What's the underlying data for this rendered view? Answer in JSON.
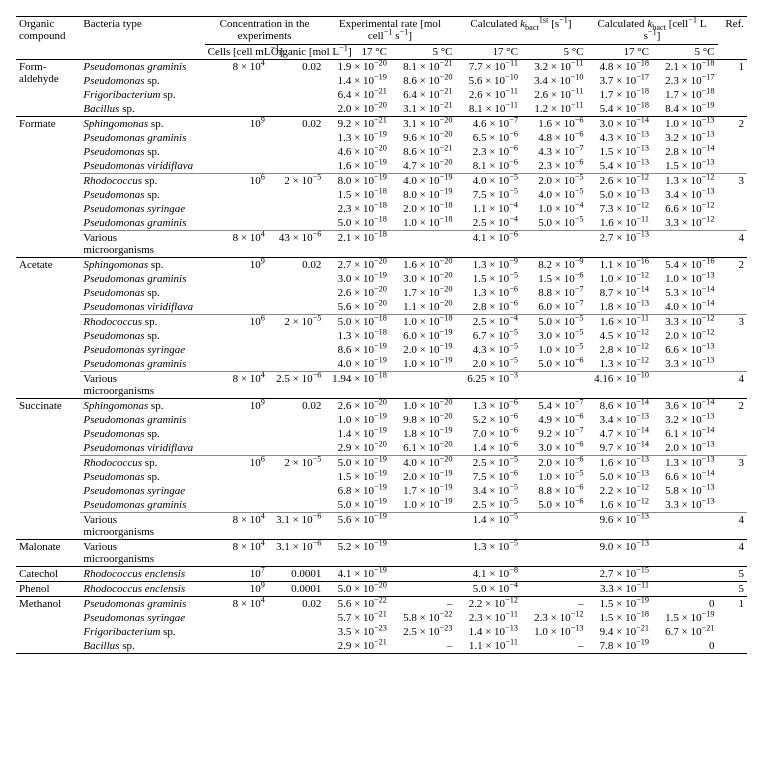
{
  "headers": {
    "organic": "Organic compound",
    "bacteria": "Bacteria type",
    "conc": "Concentration in the experiments",
    "exp_rate": "Experimental rate [mol cell<sup>−1</sup> s<sup>−1</sup>]",
    "k1st": "Calculated <i>k</i><sub>bact</sub><sup>1st</sup> [s<sup>−1</sup>]",
    "kbact": "Calculated <i>k</i><sub>bact</sub> [cell<sup>−1</sup> L s<sup>−1</sup>]",
    "ref": "Ref.",
    "cells": "Cells [cell mL<sup>−1</sup>]",
    "organic_c": "Organic [mol L<sup>−1</sup>]",
    "t17": "17 °C",
    "t5": "5 °C"
  },
  "groups": [
    {
      "compound": "Form-aldehyde",
      "blocks": [
        {
          "cells": "8 × 10<sup>4</sup>",
          "org": "0.02",
          "ref": "1",
          "rows": [
            {
              "b": "<i>Pseudomonas graminis</i>",
              "r17": "1.9 × 10<sup>−20</sup>",
              "r5": "8.1 × 10<sup>−21</sup>",
              "k17": "7.7 × 10<sup>−11</sup>",
              "k5": "3.2 × 10<sup>−11</sup>",
              "kb17": "4.8 × 10<sup>−18</sup>",
              "kb5": "2.1 × 10<sup>−18</sup>"
            },
            {
              "b": "<i>Pseudomonas</i> sp.",
              "r17": "1.4 × 10<sup>−19</sup>",
              "r5": "8.6 × 10<sup>−20</sup>",
              "k17": "5.6 × 10<sup>−10</sup>",
              "k5": "3.4 × 10<sup>−10</sup>",
              "kb17": "3.7 × 10<sup>−17</sup>",
              "kb5": "2.3 × 10<sup>−17</sup>"
            },
            {
              "b": "<i>Frigoribacterium</i> sp.",
              "r17": "6.4 × 10<sup>−21</sup>",
              "r5": "6.4 × 10<sup>−21</sup>",
              "k17": "2.6 × 10<sup>−11</sup>",
              "k5": "2.6 × 10<sup>−11</sup>",
              "kb17": "1.7 × 10<sup>−18</sup>",
              "kb5": "1.7 × 10<sup>−18</sup>"
            },
            {
              "b": "<i>Bacillus</i> sp.",
              "r17": "2.0 × 10<sup>−20</sup>",
              "r5": "3.1 × 10<sup>−21</sup>",
              "k17": "8.1 × 10<sup>−11</sup>",
              "k5": "1.2 × 10<sup>−11</sup>",
              "kb17": "5.4 × 10<sup>−18</sup>",
              "kb5": "8.4 × 10<sup>−19</sup>"
            }
          ]
        }
      ]
    },
    {
      "compound": "Formate",
      "blocks": [
        {
          "cells": "10<sup>9</sup>",
          "org": "0.02",
          "ref": "2",
          "rows": [
            {
              "b": "<i>Sphingomonas</i> sp.",
              "r17": "9.2 × 10<sup>−21</sup>",
              "r5": "3.1 × 10<sup>−20</sup>",
              "k17": "4.6 × 10<sup>−7</sup>",
              "k5": "1.6 × 10<sup>−6</sup>",
              "kb17": "3.0 × 10<sup>−14</sup>",
              "kb5": "1.0 × 10<sup>−13</sup>"
            },
            {
              "b": "<i>Pseudomonas graminis</i>",
              "r17": "1.3 × 10<sup>−19</sup>",
              "r5": "9.6 × 10<sup>−20</sup>",
              "k17": "6.5 × 10<sup>−6</sup>",
              "k5": "4.8 × 10<sup>−6</sup>",
              "kb17": "4.3 × 10<sup>−13</sup>",
              "kb5": "3.2 × 10<sup>−13</sup>"
            },
            {
              "b": "<i>Pseudomonas</i> sp.",
              "r17": "4.6 × 10<sup>−20</sup>",
              "r5": "8.6 × 10<sup>−21</sup>",
              "k17": "2.3 × 10<sup>−6</sup>",
              "k5": "4.3 × 10<sup>−7</sup>",
              "kb17": "1.5 × 10<sup>−13</sup>",
              "kb5": "2.8 × 10<sup>−14</sup>"
            },
            {
              "b": "<i>Pseudomonas viridiflava</i>",
              "r17": "1.6 × 10<sup>−19</sup>",
              "r5": "4.7 × 10<sup>−20</sup>",
              "k17": "8.1 × 10<sup>−6</sup>",
              "k5": "2.3 × 10<sup>−6</sup>",
              "kb17": "5.4 × 10<sup>−13</sup>",
              "kb5": "1.5 × 10<sup>−13</sup>"
            }
          ]
        },
        {
          "cells": "10<sup>6</sup>",
          "org": "2 × 10<sup>−5</sup>",
          "ref": "3",
          "rows": [
            {
              "b": "<i>Rhodococcus</i> sp.",
              "r17": "8.0 × 10<sup>−19</sup>",
              "r5": "4.0 × 10<sup>−19</sup>",
              "k17": "4.0 × 10<sup>−5</sup>",
              "k5": "2.0 × 10<sup>−5</sup>",
              "kb17": "2.6 × 10<sup>−12</sup>",
              "kb5": "1.3 × 10<sup>−12</sup>"
            },
            {
              "b": "<i>Pseudomonas</i> sp.",
              "r17": "1.5 × 10<sup>−18</sup>",
              "r5": "8.0 × 10<sup>−19</sup>",
              "k17": "7.5 × 10<sup>−5</sup>",
              "k5": "4.0 × 10<sup>−5</sup>",
              "kb17": "5.0 × 10<sup>−13</sup>",
              "kb5": "3.4 × 10<sup>−13</sup>"
            },
            {
              "b": "<i>Pseudomonas syringae</i>",
              "r17": "2.3 × 10<sup>−18</sup>",
              "r5": "2.0 × 10<sup>−18</sup>",
              "k17": "1.1 × 10<sup>−4</sup>",
              "k5": "1.0 × 10<sup>−4</sup>",
              "kb17": "7.3 × 10<sup>−12</sup>",
              "kb5": "6.6 × 10<sup>−12</sup>"
            },
            {
              "b": "<i>Pseudomonas graminis</i>",
              "r17": "5.0 × 10<sup>−18</sup>",
              "r5": "1.0 × 10<sup>−18</sup>",
              "k17": "2.5 × 10<sup>−4</sup>",
              "k5": "5.0 × 10<sup>−5</sup>",
              "kb17": "1.6 × 10<sup>−11</sup>",
              "kb5": "3.3 × 10<sup>−12</sup>"
            }
          ]
        },
        {
          "cells": "8 × 10<sup>4</sup>",
          "org": "43 × 10<sup>−6</sup>",
          "ref": "4",
          "rows": [
            {
              "b": "Various microorganisms",
              "r17": "2.1 × 10<sup>−18</sup>",
              "r5": "",
              "k17": "4.1 × 10<sup>−6</sup>",
              "k5": "",
              "kb17": "2.7 × 10<sup>−13</sup>",
              "kb5": ""
            }
          ]
        }
      ]
    },
    {
      "compound": "Acetate",
      "blocks": [
        {
          "cells": "10<sup>9</sup>",
          "org": "0.02",
          "ref": "2",
          "rows": [
            {
              "b": "<i>Sphingomonas</i> sp.",
              "r17": "2.7 × 10<sup>−20</sup>",
              "r5": "1.6 × 10<sup>−20</sup>",
              "k17": "1.3 × 10<sup>−9</sup>",
              "k5": "8.2 × 10<sup>−9</sup>",
              "kb17": "1.1 × 10<sup>−16</sup>",
              "kb5": "5.4 × 10<sup>−16</sup>"
            },
            {
              "b": "<i>Pseudomonas graminis</i>",
              "r17": "3.0 × 10<sup>−19</sup>",
              "r5": "3.0 × 10<sup>−20</sup>",
              "k17": "1.5 × 10<sup>−5</sup>",
              "k5": "1.5 × 10<sup>−6</sup>",
              "kb17": "1.0 × 10<sup>−12</sup>",
              "kb5": "1.0 × 10<sup>−13</sup>"
            },
            {
              "b": "<i>Pseudomonas</i> sp.",
              "r17": "2.6 × 10<sup>−20</sup>",
              "r5": "1.7 × 10<sup>−20</sup>",
              "k17": "1.3 × 10<sup>−6</sup>",
              "k5": "8.8 × 10<sup>−7</sup>",
              "kb17": "8.7 × 10<sup>−14</sup>",
              "kb5": "5.3 × 10<sup>−14</sup>"
            },
            {
              "b": "<i>Pseudomonas viridiflava</i>",
              "r17": "5.6 × 10<sup>−20</sup>",
              "r5": "1.1 × 10<sup>−20</sup>",
              "k17": "2.8 × 10<sup>−6</sup>",
              "k5": "6.0 × 10<sup>−7</sup>",
              "kb17": "1.8 × 10<sup>−13</sup>",
              "kb5": "4.0 × 10<sup>−14</sup>"
            }
          ]
        },
        {
          "cells": "10<sup>6</sup>",
          "org": "2 × 10<sup>−5</sup>",
          "ref": "3",
          "rows": [
            {
              "b": "<i>Rhodococcus</i> sp.",
              "r17": "5.0 × 10<sup>−18</sup>",
              "r5": "1.0 × 10<sup>−18</sup>",
              "k17": "2.5 × 10<sup>−4</sup>",
              "k5": "5.0 × 10<sup>−5</sup>",
              "kb17": "1.6 × 10<sup>−11</sup>",
              "kb5": "3.3 × 10<sup>−12</sup>"
            },
            {
              "b": "<i>Pseudomonas</i> sp.",
              "r17": "1.3 × 10<sup>−18</sup>",
              "r5": "6.0 × 10<sup>−19</sup>",
              "k17": "6.7 × 10<sup>−5</sup>",
              "k5": "3.0 × 10<sup>−5</sup>",
              "kb17": "4.5 × 10<sup>−12</sup>",
              "kb5": "2.0 × 10<sup>−12</sup>"
            },
            {
              "b": "<i>Pseudomonas syringae</i>",
              "r17": "8.6 × 10<sup>−19</sup>",
              "r5": "2.0 × 10<sup>−19</sup>",
              "k17": "4.3 × 10<sup>−5</sup>",
              "k5": "1.0 × 10<sup>−5</sup>",
              "kb17": "2.8 × 10<sup>−12</sup>",
              "kb5": "6.6 × 10<sup>−13</sup>"
            },
            {
              "b": "<i>Pseudomonas graminis</i>",
              "r17": "4.0 × 10<sup>−19</sup>",
              "r5": "1.0 × 10<sup>−19</sup>",
              "k17": "2.0 × 10<sup>−5</sup>",
              "k5": "5.0 × 10<sup>−6</sup>",
              "kb17": "1.3 × 10<sup>−12</sup>",
              "kb5": "3.3 × 10<sup>−13</sup>"
            }
          ]
        },
        {
          "cells": "8 × 10<sup>4</sup>",
          "org": "2.5 × 10<sup>−6</sup>",
          "ref": "4",
          "rows": [
            {
              "b": "Various microorganisms",
              "r17": "1.94 × 10<sup>−18</sup>",
              "r5": "",
              "k17": "6.25 × 10<sup>−3</sup>",
              "k5": "",
              "kb17": "4.16 × 10<sup>−10</sup>",
              "kb5": ""
            }
          ]
        }
      ]
    },
    {
      "compound": "Succinate",
      "blocks": [
        {
          "cells": "10<sup>9</sup>",
          "org": "0.02",
          "ref": "2",
          "rows": [
            {
              "b": "<i>Sphingomonas</i> sp.",
              "r17": "2.6 × 10<sup>−20</sup>",
              "r5": "1.0 × 10<sup>−20</sup>",
              "k17": "1.3 × 10<sup>−6</sup>",
              "k5": "5.4 × 10<sup>−7</sup>",
              "kb17": "8.6 × 10<sup>−14</sup>",
              "kb5": "3.6 × 10<sup>−14</sup>"
            },
            {
              "b": "<i>Pseudomonas graminis</i>",
              "r17": "1.0 × 10<sup>−19</sup>",
              "r5": "9.8 × 10<sup>−20</sup>",
              "k17": "5.2 × 10<sup>−6</sup>",
              "k5": "4.9 × 10<sup>−6</sup>",
              "kb17": "3.4 × 10<sup>−13</sup>",
              "kb5": "3.2 × 10<sup>−13</sup>"
            },
            {
              "b": "<i>Pseudomonas</i> sp.",
              "r17": "1.4 × 10<sup>−19</sup>",
              "r5": "1.8 × 10<sup>−19</sup>",
              "k17": "7.0 × 10<sup>−6</sup>",
              "k5": "9.2 × 10<sup>−7</sup>",
              "kb17": "4.7 × 10<sup>−14</sup>",
              "kb5": "6.1 × 10<sup>−14</sup>"
            },
            {
              "b": "<i>Pseudomonas viridiflava</i>",
              "r17": "2.9 × 10<sup>−20</sup>",
              "r5": "6.1 × 10<sup>−20</sup>",
              "k17": "1.4 × 10<sup>−6</sup>",
              "k5": "3.0 × 10<sup>−6</sup>",
              "kb17": "9.7 × 10<sup>−14</sup>",
              "kb5": "2.0 × 10<sup>−13</sup>"
            }
          ]
        },
        {
          "cells": "10<sup>6</sup>",
          "org": "2 × 10<sup>−5</sup>",
          "ref": "3",
          "rows": [
            {
              "b": "<i>Rhodococcus</i> sp.",
              "r17": "5.0 × 10<sup>−19</sup>",
              "r5": "4.0 × 10<sup>−20</sup>",
              "k17": "2.5 × 10<sup>−5</sup>",
              "k5": "2.0 × 10<sup>−6</sup>",
              "kb17": "1.6 × 10<sup>−13</sup>",
              "kb5": "1.3 × 10<sup>−13</sup>"
            },
            {
              "b": "<i>Pseudomonas</i> sp.",
              "r17": "1.5 × 10<sup>−19</sup>",
              "r5": "2.0 × 10<sup>−19</sup>",
              "k17": "7.5 × 10<sup>−6</sup>",
              "k5": "1.0 × 10<sup>−5</sup>",
              "kb17": "5.0 × 10<sup>−13</sup>",
              "kb5": "6.6 × 10<sup>−14</sup>"
            },
            {
              "b": "<i>Pseudomonas syringae</i>",
              "r17": "6.8 × 10<sup>−19</sup>",
              "r5": "1.7 × 10<sup>−19</sup>",
              "k17": "3.4 × 10<sup>−5</sup>",
              "k5": "8.8 × 10<sup>−6</sup>",
              "kb17": "2.2 × 10<sup>−12</sup>",
              "kb5": "5.8 × 10<sup>−13</sup>"
            },
            {
              "b": "<i>Pseudomonas graminis</i>",
              "r17": "5.0 × 10<sup>−19</sup>",
              "r5": "1.0 × 10<sup>−19</sup>",
              "k17": "2.5 × 10<sup>−5</sup>",
              "k5": "5.0 × 10<sup>−6</sup>",
              "kb17": "1.6 × 10<sup>−12</sup>",
              "kb5": "3.3 × 10<sup>−13</sup>"
            }
          ]
        },
        {
          "cells": "8 × 10<sup>4</sup>",
          "org": "3.1 × 10<sup>−6</sup>",
          "ref": "4",
          "rows": [
            {
              "b": "Various microorganisms",
              "r17": "5.6 × 10<sup>−19</sup>",
              "r5": "",
              "k17": "1.4 × 10<sup>−5</sup>",
              "k5": "",
              "kb17": "9.6 × 10<sup>−13</sup>",
              "kb5": ""
            }
          ]
        }
      ]
    },
    {
      "compound": "Malonate",
      "blocks": [
        {
          "cells": "8 × 10<sup>4</sup>",
          "org": "3.1 × 10<sup>−6</sup>",
          "ref": "4",
          "rows": [
            {
              "b": "Various microorganisms",
              "r17": "5.2 × 10<sup>−19</sup>",
              "r5": "",
              "k17": "1.3 × 10<sup>−5</sup>",
              "k5": "",
              "kb17": "9.0 × 10<sup>−13</sup>",
              "kb5": ""
            }
          ]
        }
      ]
    },
    {
      "compound": "Catechol",
      "blocks": [
        {
          "cells": "10<sup>7</sup>",
          "org": "0.0001",
          "ref": "5",
          "rows": [
            {
              "b": "<i>Rhodococcus enclensis</i>",
              "r17": "4.1 × 10<sup>−19</sup>",
              "r5": "",
              "k17": "4.1 × 10<sup>−8</sup>",
              "k5": "",
              "kb17": "2.7 × 10<sup>−15</sup>",
              "kb5": ""
            }
          ]
        }
      ]
    },
    {
      "compound": "Phenol",
      "blocks": [
        {
          "cells": "10<sup>9</sup>",
          "org": "0.0001",
          "ref": "5",
          "rows": [
            {
              "b": "<i>Rhodococcus enclensis</i>",
              "r17": "5.0 × 10<sup>−20</sup>",
              "r5": "",
              "k17": "5.0 × 10<sup>−4</sup>",
              "k5": "",
              "kb17": "3.3 × 10<sup>−11</sup>",
              "kb5": ""
            }
          ]
        }
      ]
    },
    {
      "compound": "Methanol",
      "blocks": [
        {
          "cells": "8 × 10<sup>4</sup>",
          "org": "0.02",
          "ref": "1",
          "rows": [
            {
              "b": "<i>Pseudomonas graminis</i>",
              "r17": "5.6 × 10<sup>−22</sup>",
              "r5": "–",
              "k17": "2.2 × 10<sup>−12</sup>",
              "k5": "–",
              "kb17": "1.5 × 10<sup>−19</sup>",
              "kb5": "0"
            },
            {
              "b": "<i>Pseudomonas syringae</i>",
              "r17": "5.7 × 10<sup>−21</sup>",
              "r5": "5.8 × 10<sup>−22</sup>",
              "k17": "2.3 × 10<sup>−11</sup>",
              "k5": "2.3 × 10<sup>−12</sup>",
              "kb17": "1.5 × 10<sup>−18</sup>",
              "kb5": "1.5 × 10<sup>−19</sup>"
            },
            {
              "b": "<i>Frigoribacterium</i> sp.",
              "r17": "3.5 × 10<sup>−23</sup>",
              "r5": "2.5 × 10<sup>−23</sup>",
              "k17": "1.4 × 10<sup>−13</sup>",
              "k5": "1.0 × 10<sup>−13</sup>",
              "kb17": "9.4 × 10<sup>−21</sup>",
              "kb5": "6.7 × 10<sup>−21</sup>"
            },
            {
              "b": "<i>Bacillus</i> sp.",
              "r17": "2.9 × 10<sup>−21</sup>",
              "r5": "–",
              "k17": "1.1 × 10<sup>−11</sup>",
              "k5": "–",
              "kb17": "7.8 × 10<sup>−19</sup>",
              "kb5": "0"
            }
          ]
        }
      ]
    }
  ]
}
